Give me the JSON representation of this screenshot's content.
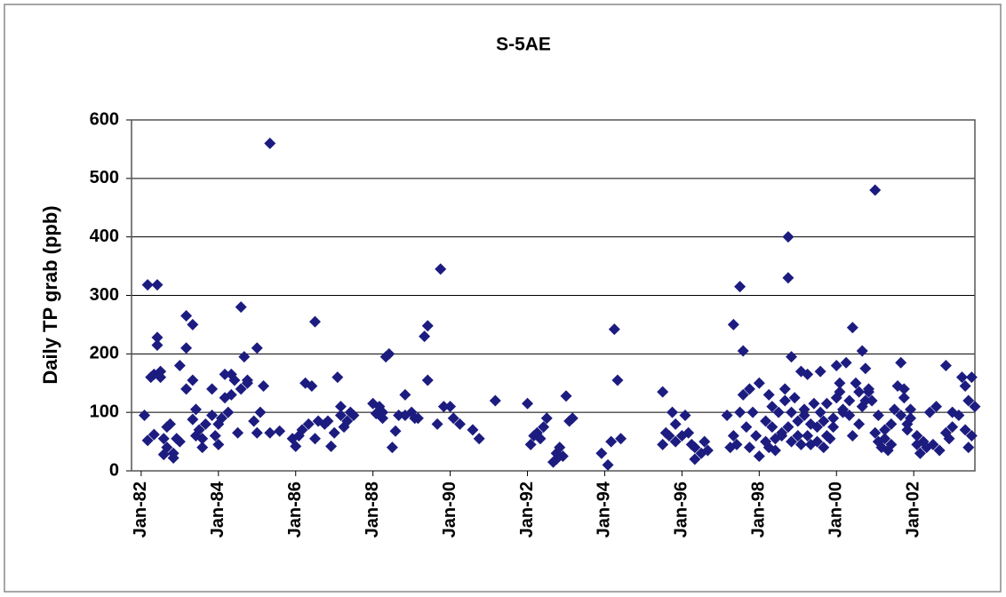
{
  "chart_data": {
    "type": "scatter",
    "title": "S-5AE",
    "y_label": "Daily TP grab (ppb)",
    "color": "#1c1c80",
    "grid": true,
    "xlim": [
      "1981-10",
      "2003-08"
    ],
    "xticks": [
      {
        "value": "1982-01",
        "label": "Jan-82"
      },
      {
        "value": "1984-01",
        "label": "Jan-84"
      },
      {
        "value": "1986-01",
        "label": "Jan-86"
      },
      {
        "value": "1988-01",
        "label": "Jan-88"
      },
      {
        "value": "1990-01",
        "label": "Jan-90"
      },
      {
        "value": "1992-01",
        "label": "Jan-92"
      },
      {
        "value": "1994-01",
        "label": "Jan-94"
      },
      {
        "value": "1996-01",
        "label": "Jan-96"
      },
      {
        "value": "1998-01",
        "label": "Jan-98"
      },
      {
        "value": "2000-01",
        "label": "Jan-00"
      },
      {
        "value": "2002-01",
        "label": "Jan-02"
      }
    ],
    "ylim": [
      0,
      600
    ],
    "yticks": [
      0,
      100,
      200,
      300,
      400,
      500,
      600
    ],
    "x": [
      "1982-02",
      "1982-03",
      "1982-03",
      "1982-04",
      "1982-05",
      "1982-05",
      "1982-06",
      "1982-06",
      "1982-06",
      "1982-07",
      "1982-07",
      "1982-08",
      "1982-08",
      "1982-09",
      "1982-09",
      "1982-10",
      "1982-11",
      "1982-11",
      "1982-12",
      "1983-01",
      "1983-01",
      "1983-03",
      "1983-03",
      "1983-03",
      "1983-05",
      "1983-05",
      "1983-05",
      "1983-06",
      "1983-06",
      "1983-07",
      "1983-08",
      "1983-08",
      "1983-09",
      "1983-11",
      "1983-11",
      "1983-12",
      "1984-01",
      "1984-01",
      "1984-02",
      "1984-03",
      "1984-03",
      "1984-04",
      "1984-05",
      "1984-05",
      "1984-06",
      "1984-07",
      "1984-08",
      "1984-08",
      "1984-09",
      "1984-10",
      "1984-10",
      "1984-12",
      "1985-01",
      "1985-01",
      "1985-02",
      "1985-03",
      "1985-05",
      "1985-05",
      "1985-08",
      "1985-12",
      "1986-01",
      "1986-02",
      "1986-03",
      "1986-04",
      "1986-05",
      "1986-06",
      "1986-07",
      "1986-07",
      "1986-08",
      "1986-10",
      "1986-11",
      "1986-12",
      "1987-01",
      "1987-02",
      "1987-03",
      "1987-03",
      "1987-04",
      "1987-05",
      "1987-06",
      "1987-07",
      "1988-01",
      "1988-02",
      "1988-03",
      "1988-04",
      "1988-04",
      "1988-05",
      "1988-06",
      "1988-07",
      "1988-08",
      "1988-09",
      "1988-11",
      "1988-11",
      "1989-01",
      "1989-02",
      "1989-03",
      "1989-05",
      "1989-06",
      "1989-06",
      "1989-09",
      "1989-10",
      "1989-11",
      "1990-01",
      "1990-02",
      "1990-04",
      "1990-08",
      "1990-10",
      "1991-03",
      "1992-01",
      "1992-02",
      "1992-03",
      "1992-04",
      "1992-05",
      "1992-06",
      "1992-07",
      "1992-09",
      "1992-10",
      "1992-10",
      "1992-11",
      "1992-12",
      "1993-01",
      "1993-02",
      "1993-03",
      "1993-12",
      "1994-02",
      "1994-03",
      "1994-04",
      "1994-05",
      "1994-06",
      "1995-07",
      "1995-07",
      "1995-08",
      "1995-09",
      "1995-10",
      "1995-11",
      "1995-11",
      "1996-01",
      "1996-02",
      "1996-03",
      "1996-04",
      "1996-05",
      "1996-05",
      "1996-07",
      "1996-08",
      "1996-09",
      "1997-03",
      "1997-04",
      "1997-05",
      "1997-05",
      "1997-06",
      "1997-07",
      "1997-07",
      "1997-08",
      "1997-08",
      "1997-09",
      "1997-10",
      "1997-10",
      "1997-11",
      "1997-12",
      "1998-01",
      "1998-01",
      "1998-03",
      "1998-03",
      "1998-04",
      "1998-04",
      "1998-05",
      "1998-05",
      "1998-06",
      "1998-06",
      "1998-07",
      "1998-08",
      "1998-08",
      "1998-09",
      "1998-09",
      "1998-10",
      "1998-10",
      "1998-10",
      "1998-11",
      "1998-11",
      "1998-11",
      "1998-12",
      "1999-01",
      "1999-01",
      "1999-02",
      "1999-02",
      "1999-03",
      "1999-03",
      "1999-04",
      "1999-04",
      "1999-05",
      "1999-05",
      "1999-06",
      "1999-07",
      "1999-07",
      "1999-08",
      "1999-08",
      "1999-09",
      "1999-09",
      "1999-10",
      "1999-10",
      "1999-11",
      "1999-12",
      "1999-12",
      "2000-01",
      "2000-01",
      "2000-02",
      "2000-02",
      "2000-03",
      "2000-03",
      "2000-04",
      "2000-05",
      "2000-05",
      "2000-06",
      "2000-06",
      "2000-07",
      "2000-08",
      "2000-08",
      "2000-09",
      "2000-09",
      "2000-10",
      "2000-10",
      "2000-11",
      "2000-11",
      "2000-12",
      "2001-01",
      "2001-01",
      "2001-02",
      "2001-02",
      "2001-03",
      "2001-04",
      "2001-04",
      "2001-05",
      "2001-06",
      "2001-06",
      "2001-07",
      "2001-08",
      "2001-09",
      "2001-09",
      "2001-10",
      "2001-10",
      "2001-11",
      "2001-11",
      "2001-12",
      "2001-12",
      "2002-02",
      "2002-02",
      "2002-03",
      "2002-04",
      "2002-05",
      "2002-06",
      "2002-07",
      "2002-08",
      "2002-09",
      "2002-11",
      "2002-11",
      "2002-12",
      "2003-01",
      "2003-01",
      "2003-03",
      "2003-04",
      "2003-05",
      "2003-05",
      "2003-06",
      "2003-06",
      "2003-07",
      "2003-07",
      "2003-08"
    ],
    "values": [
      95,
      52,
      318,
      160,
      62,
      165,
      318,
      228,
      215,
      170,
      160,
      55,
      28,
      75,
      40,
      80,
      30,
      22,
      55,
      180,
      50,
      265,
      210,
      140,
      155,
      250,
      88,
      60,
      105,
      70,
      55,
      40,
      80,
      95,
      140,
      60,
      80,
      45,
      90,
      125,
      165,
      100,
      130,
      165,
      155,
      65,
      280,
      140,
      195,
      155,
      150,
      85,
      65,
      210,
      100,
      145,
      560,
      65,
      68,
      55,
      42,
      60,
      70,
      150,
      80,
      145,
      255,
      55,
      85,
      80,
      85,
      42,
      65,
      160,
      110,
      95,
      75,
      85,
      100,
      95,
      115,
      98,
      110,
      90,
      100,
      195,
      200,
      40,
      68,
      95,
      130,
      95,
      100,
      90,
      90,
      230,
      155,
      248,
      80,
      345,
      110,
      110,
      90,
      80,
      70,
      55,
      120,
      115,
      45,
      60,
      65,
      55,
      75,
      90,
      15,
      20,
      30,
      40,
      25,
      128,
      85,
      90,
      30,
      10,
      50,
      242,
      155,
      55,
      45,
      135,
      65,
      60,
      100,
      80,
      50,
      60,
      95,
      65,
      45,
      20,
      40,
      30,
      50,
      35,
      95,
      40,
      250,
      60,
      45,
      100,
      315,
      205,
      130,
      75,
      40,
      140,
      100,
      60,
      150,
      25,
      50,
      85,
      130,
      40,
      75,
      110,
      55,
      35,
      100,
      60,
      65,
      140,
      120,
      75,
      330,
      400,
      195,
      100,
      50,
      125,
      85,
      60,
      170,
      45,
      95,
      105,
      165,
      60,
      80,
      45,
      115,
      75,
      50,
      170,
      100,
      40,
      85,
      60,
      115,
      55,
      75,
      90,
      180,
      125,
      135,
      150,
      105,
      100,
      185,
      95,
      120,
      245,
      60,
      150,
      80,
      135,
      110,
      205,
      175,
      120,
      140,
      135,
      120,
      65,
      480,
      50,
      95,
      40,
      70,
      55,
      35,
      45,
      80,
      105,
      145,
      185,
      95,
      125,
      140,
      80,
      70,
      105,
      90,
      60,
      45,
      30,
      50,
      40,
      100,
      45,
      110,
      35,
      180,
      65,
      55,
      75,
      100,
      95,
      160,
      145,
      70,
      120,
      40,
      160,
      60,
      110
    ]
  }
}
